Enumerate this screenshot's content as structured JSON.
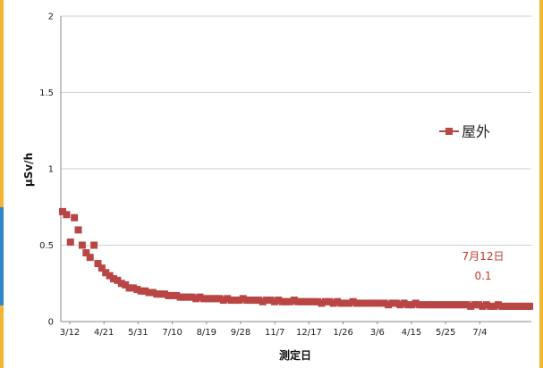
{
  "colors": {
    "series": "#b94545",
    "grid": "#cfcfcf",
    "axis": "#888888",
    "accent_edge": "#f2b632",
    "accent_edge_blue": "#2f86c9"
  },
  "chart_data": {
    "type": "scatter",
    "xlabel": "測定日",
    "ylabel": "μSv/h",
    "ylim": [
      0,
      2
    ],
    "y_ticks": [
      "0",
      "0.5",
      "1",
      "1.5",
      "2"
    ],
    "x_ticks": [
      "3/12",
      "4/21",
      "5/31",
      "7/10",
      "8/19",
      "9/28",
      "11/7",
      "12/17",
      "1/26",
      "3/6",
      "4/15",
      "5/25",
      "7/4"
    ],
    "grid": "horizontal",
    "legend": {
      "position": "right",
      "entries": [
        "屋外"
      ]
    },
    "series": [
      {
        "name": "屋外",
        "marker": "square",
        "x_day_range": [
          0,
          486
        ],
        "values": [
          0.72,
          0.7,
          0.52,
          0.68,
          0.6,
          0.5,
          0.45,
          0.42,
          0.5,
          0.38,
          0.35,
          0.32,
          0.3,
          0.28,
          0.27,
          0.25,
          0.24,
          0.22,
          0.22,
          0.21,
          0.2,
          0.2,
          0.19,
          0.19,
          0.18,
          0.18,
          0.18,
          0.17,
          0.17,
          0.17,
          0.16,
          0.16,
          0.16,
          0.16,
          0.15,
          0.16,
          0.15,
          0.15,
          0.15,
          0.15,
          0.15,
          0.14,
          0.15,
          0.14,
          0.14,
          0.14,
          0.15,
          0.14,
          0.14,
          0.14,
          0.14,
          0.13,
          0.14,
          0.14,
          0.13,
          0.14,
          0.13,
          0.13,
          0.13,
          0.14,
          0.13,
          0.13,
          0.13,
          0.13,
          0.13,
          0.13,
          0.12,
          0.13,
          0.13,
          0.12,
          0.13,
          0.12,
          0.12,
          0.12,
          0.13,
          0.12,
          0.12,
          0.12,
          0.12,
          0.12,
          0.12,
          0.12,
          0.12,
          0.11,
          0.12,
          0.12,
          0.11,
          0.12,
          0.11,
          0.11,
          0.12,
          0.11,
          0.11,
          0.11,
          0.11,
          0.11,
          0.11,
          0.11,
          0.11,
          0.11,
          0.11,
          0.11,
          0.11,
          0.11,
          0.1,
          0.11,
          0.11,
          0.1,
          0.11,
          0.1,
          0.1,
          0.11,
          0.1,
          0.1,
          0.1,
          0.1,
          0.1,
          0.1,
          0.1,
          0.1
        ]
      }
    ],
    "annotation": {
      "date": "7月12日",
      "value": "0.1"
    }
  }
}
